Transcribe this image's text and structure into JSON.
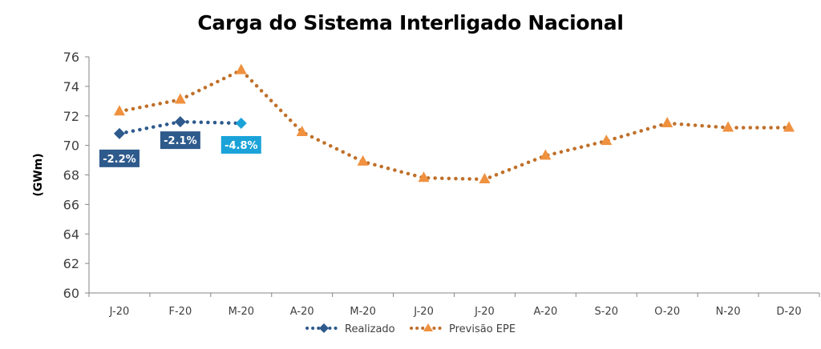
{
  "chart_data": {
    "type": "line",
    "title": "Carga do Sistema Interligado Nacional",
    "xlabel": "",
    "ylabel": "(GWm)",
    "ylim": [
      60,
      76
    ],
    "yticks": [
      60,
      62,
      64,
      66,
      68,
      70,
      72,
      74,
      76
    ],
    "grid": false,
    "legend_position": "bottom",
    "categories": [
      "J-20",
      "F-20",
      "M-20",
      "A-20",
      "M-20",
      "J-20",
      "J-20",
      "A-20",
      "S-20",
      "O-20",
      "N-20",
      "D-20"
    ],
    "series": [
      {
        "name": "Realizado",
        "marker": "diamond",
        "color": "#2E5A8C",
        "values": [
          70.8,
          71.6,
          71.5,
          null,
          null,
          null,
          null,
          null,
          null,
          null,
          null,
          null
        ],
        "point_colors": [
          "#2E5A8C",
          "#2E5A8C",
          "#1BA3D9"
        ]
      },
      {
        "name": "Previsão EPE",
        "marker": "triangle",
        "color": "#F0913F",
        "line_color": "#C0702A",
        "values": [
          72.3,
          73.1,
          75.1,
          70.9,
          68.9,
          67.8,
          67.7,
          69.3,
          70.3,
          71.5,
          71.2,
          71.2
        ]
      }
    ],
    "annotations": [
      {
        "text": "-2.2%",
        "category_index": 0,
        "color": "#2E5A8C"
      },
      {
        "text": "-2.1%",
        "category_index": 1,
        "color": "#2E5A8C"
      },
      {
        "text": "-4.8%",
        "category_index": 2,
        "color": "#1BA3D9"
      }
    ]
  }
}
